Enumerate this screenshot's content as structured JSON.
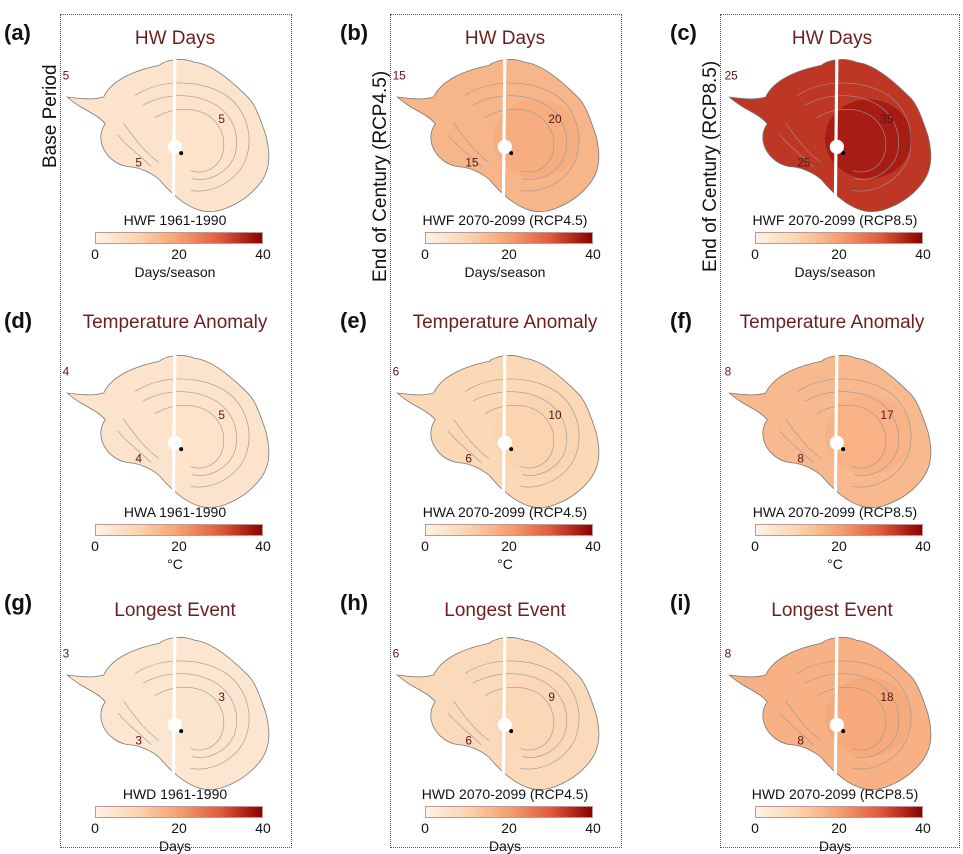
{
  "colors": {
    "title": "#6b1f1f",
    "value": "#5a1414",
    "low": "#fdf2e6",
    "high": "#8b0000"
  },
  "rows": [
    {
      "title": "HW Days",
      "unit": "Days/season",
      "metric": "HWF"
    },
    {
      "title": "Temperature Anomaly",
      "unit": "°C",
      "metric": "HWA"
    },
    {
      "title": "Longest Event",
      "unit": "Days",
      "metric": "HWD"
    }
  ],
  "columns": [
    {
      "row_label": "Base Period",
      "period": "1961-1990"
    },
    {
      "row_label": "End of Century (RCP4.5)",
      "period": "2070-2099 (RCP4.5)"
    },
    {
      "row_label": "End of Century (RCP8.5)",
      "period": "2070-2099 (RCP8.5)"
    }
  ],
  "colorbar_ticks": [
    "0",
    "20",
    "40"
  ],
  "panels": [
    {
      "letter": "(a)",
      "title": "HW Days",
      "cb_title": "HWF 1961-1990",
      "unit": "Days/season",
      "v_peninsula": "5",
      "v_east": "5",
      "v_west": "5",
      "intensity": 0.12
    },
    {
      "letter": "(b)",
      "title": "HW Days",
      "cb_title": "HWF 2070-2099 (RCP4.5)",
      "unit": "Days/season",
      "v_peninsula": "15",
      "v_east": "20",
      "v_west": "15",
      "intensity": 0.4
    },
    {
      "letter": "(c)",
      "title": "HW Days",
      "cb_title": "HWF 2070-2099 (RCP8.5)",
      "unit": "Days/season",
      "v_peninsula": "25",
      "v_east": "35",
      "v_west": "25",
      "intensity": 0.85
    },
    {
      "letter": "(d)",
      "title": "Temperature Anomaly",
      "cb_title": "HWA 1961-1990",
      "unit": "°C",
      "v_peninsula": "4",
      "v_east": "5",
      "v_west": "4",
      "intensity": 0.12
    },
    {
      "letter": "(e)",
      "title": "Temperature Anomaly",
      "cb_title": "HWA 2070-2099 (RCP4.5)",
      "unit": "°C",
      "v_peninsula": "6",
      "v_east": "10",
      "v_west": "6",
      "intensity": 0.22
    },
    {
      "letter": "(f)",
      "title": "Temperature Anomaly",
      "cb_title": "HWA 2070-2099 (RCP8.5)",
      "unit": "°C",
      "v_peninsula": "8",
      "v_east": "17",
      "v_west": "8",
      "intensity": 0.38
    },
    {
      "letter": "(g)",
      "title": "Longest Event",
      "cb_title": "HWD 1961-1990",
      "unit": "Days",
      "v_peninsula": "3",
      "v_east": "3",
      "v_west": "3",
      "intensity": 0.1
    },
    {
      "letter": "(h)",
      "title": "Longest Event",
      "cb_title": "HWD 2070-2099 (RCP4.5)",
      "unit": "Days",
      "v_peninsula": "6",
      "v_east": "9",
      "v_west": "6",
      "intensity": 0.2
    },
    {
      "letter": "(i)",
      "title": "Longest Event",
      "cb_title": "HWD 2070-2099 (RCP8.5)",
      "unit": "Days",
      "v_peninsula": "8",
      "v_east": "18",
      "v_west": "8",
      "intensity": 0.42
    }
  ]
}
